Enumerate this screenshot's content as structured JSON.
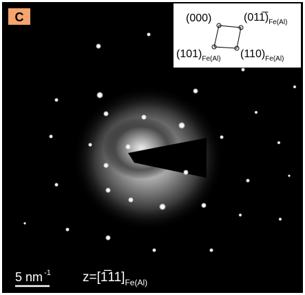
{
  "panel_label": "C",
  "inset": {
    "labels": [
      {
        "text": "(000)"
      },
      {
        "text": "(011̅)",
        "subscript": "Fe(Al)"
      },
      {
        "text": "(101)",
        "subscript": "Fe(Al)"
      },
      {
        "text": "(110)",
        "subscript": "Fe(Al)"
      }
    ]
  },
  "scale_bar": {
    "text": "5 nm",
    "superscript": "-1"
  },
  "zone_axis": {
    "text": "z=[1̅11]",
    "subscript": "Fe(Al)"
  }
}
